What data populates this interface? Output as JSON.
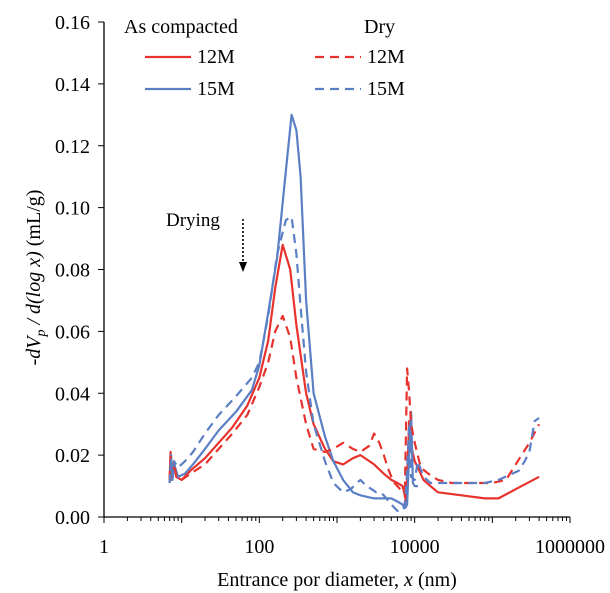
{
  "chart_data": {
    "type": "line",
    "title": "",
    "xlabel_prefix": "Entrance por diameter, ",
    "xlabel_var": "x",
    "xlabel_suffix": " (nm)",
    "ylabel_prefix": "-dV",
    "ylabel_sub": "p",
    "ylabel_mid": " / d(log x)",
    "ylabel_suffix": "  (mL/g)",
    "x_scale": "log",
    "xlim": [
      1,
      1000000
    ],
    "ylim": [
      0,
      0.16
    ],
    "x_ticks": [
      1,
      100,
      10000,
      1000000
    ],
    "x_tick_labels": [
      "1",
      "100",
      "10000",
      "1000000"
    ],
    "y_ticks": [
      0,
      0.02,
      0.04,
      0.06,
      0.08,
      0.1,
      0.12,
      0.14,
      0.16
    ],
    "y_tick_labels": [
      "0.00",
      "0.02",
      "0.04",
      "0.06",
      "0.08",
      "0.10",
      "0.12",
      "0.14",
      "0.16"
    ],
    "grid": false,
    "legend_position": "top-left",
    "legend_groups": [
      "As compacted",
      "Dry"
    ],
    "annotation": {
      "text": "Drying",
      "x": 60,
      "y": 0.074
    },
    "series": [
      {
        "name": "12M",
        "group": "As compacted",
        "color": "#e8322d",
        "dash": "solid",
        "x": [
          7,
          7.2,
          7.5,
          8,
          8.5,
          10,
          13,
          20,
          30,
          45,
          70,
          100,
          130,
          160,
          200,
          250,
          300,
          400,
          500,
          700,
          900,
          1200,
          1600,
          2000,
          3000,
          4000,
          5000,
          6000,
          7000,
          7300,
          7600,
          7800,
          8000,
          8500,
          9000,
          10000,
          11000,
          13000,
          16000,
          20000,
          40000,
          80000,
          120000,
          200000,
          400000
        ],
        "y": [
          0.012,
          0.021,
          0.012,
          0.018,
          0.013,
          0.012,
          0.015,
          0.019,
          0.024,
          0.029,
          0.036,
          0.045,
          0.057,
          0.074,
          0.088,
          0.08,
          0.062,
          0.04,
          0.03,
          0.022,
          0.018,
          0.017,
          0.019,
          0.02,
          0.017,
          0.014,
          0.012,
          0.011,
          0.01,
          0.008,
          0.006,
          0.004,
          0.012,
          0.031,
          0.023,
          0.018,
          0.016,
          0.012,
          0.01,
          0.008,
          0.007,
          0.006,
          0.006,
          0.009,
          0.013
        ]
      },
      {
        "name": "15M",
        "group": "As compacted",
        "color": "#5b7fc4",
        "dash": "solid",
        "x": [
          7,
          7.3,
          7.6,
          8,
          9,
          11,
          14,
          20,
          30,
          50,
          80,
          100,
          130,
          170,
          220,
          260,
          300,
          340,
          400,
          500,
          700,
          900,
          1200,
          1600,
          2000,
          3000,
          4000,
          5000,
          6000,
          7000,
          7300,
          7600,
          8000,
          8500,
          9000,
          9500,
          10000,
          11000
        ],
        "y": [
          0.011,
          0.02,
          0.012,
          0.017,
          0.013,
          0.014,
          0.017,
          0.022,
          0.028,
          0.034,
          0.041,
          0.049,
          0.066,
          0.084,
          0.112,
          0.13,
          0.125,
          0.11,
          0.07,
          0.04,
          0.026,
          0.018,
          0.012,
          0.008,
          0.007,
          0.006,
          0.006,
          0.006,
          0.005,
          0.004,
          0.003,
          0.003,
          0.004,
          0.02,
          0.034,
          0.011,
          0.01,
          0.01
        ]
      },
      {
        "name": "12M",
        "group": "Dry",
        "color": "#e8322d",
        "dash": "dashed",
        "x": [
          7,
          7.2,
          7.5,
          8,
          8.5,
          10,
          13,
          20,
          30,
          45,
          70,
          100,
          130,
          160,
          200,
          250,
          300,
          400,
          500,
          700,
          900,
          1200,
          1600,
          2000,
          2600,
          3000,
          3500,
          4000,
          4500,
          5000,
          5500,
          6000,
          6500,
          7000,
          7500,
          8000,
          8500,
          9000,
          10000,
          12000,
          15000,
          20000,
          30000,
          60000,
          100000,
          150000,
          200000,
          300000,
          400000
        ],
        "y": [
          0.012,
          0.02,
          0.012,
          0.018,
          0.013,
          0.012,
          0.014,
          0.017,
          0.022,
          0.027,
          0.033,
          0.042,
          0.05,
          0.06,
          0.065,
          0.058,
          0.045,
          0.03,
          0.022,
          0.021,
          0.022,
          0.024,
          0.022,
          0.021,
          0.023,
          0.027,
          0.024,
          0.02,
          0.016,
          0.013,
          0.011,
          0.01,
          0.009,
          0.008,
          0.01,
          0.048,
          0.04,
          0.03,
          0.024,
          0.016,
          0.014,
          0.012,
          0.011,
          0.011,
          0.011,
          0.012,
          0.017,
          0.024,
          0.03
        ]
      },
      {
        "name": "15M",
        "group": "Dry",
        "color": "#5b7fc4",
        "dash": "dashed",
        "x": [
          7,
          7.3,
          7.6,
          8,
          9,
          11,
          14,
          20,
          30,
          50,
          80,
          100,
          130,
          170,
          220,
          260,
          300,
          340,
          400,
          500,
          700,
          900,
          1200,
          1500,
          1800,
          2000,
          2400,
          2800,
          3200,
          3600,
          4000,
          5000,
          6000,
          7000,
          7300,
          7600,
          8000,
          8500,
          9000,
          10000,
          11000,
          13000,
          16000,
          20000,
          40000,
          80000,
          120000,
          180000,
          220000,
          260000,
          300000,
          350000,
          400000
        ],
        "y": [
          0.011,
          0.019,
          0.012,
          0.018,
          0.016,
          0.018,
          0.021,
          0.027,
          0.033,
          0.039,
          0.045,
          0.05,
          0.065,
          0.085,
          0.096,
          0.097,
          0.085,
          0.068,
          0.047,
          0.03,
          0.018,
          0.011,
          0.008,
          0.009,
          0.011,
          0.012,
          0.01,
          0.009,
          0.008,
          0.008,
          0.007,
          0.004,
          0.002,
          0.002,
          0.003,
          0.006,
          0.015,
          0.03,
          0.013,
          0.012,
          0.018,
          0.013,
          0.011,
          0.011,
          0.011,
          0.011,
          0.012,
          0.014,
          0.015,
          0.018,
          0.021,
          0.031,
          0.032
        ]
      }
    ]
  }
}
